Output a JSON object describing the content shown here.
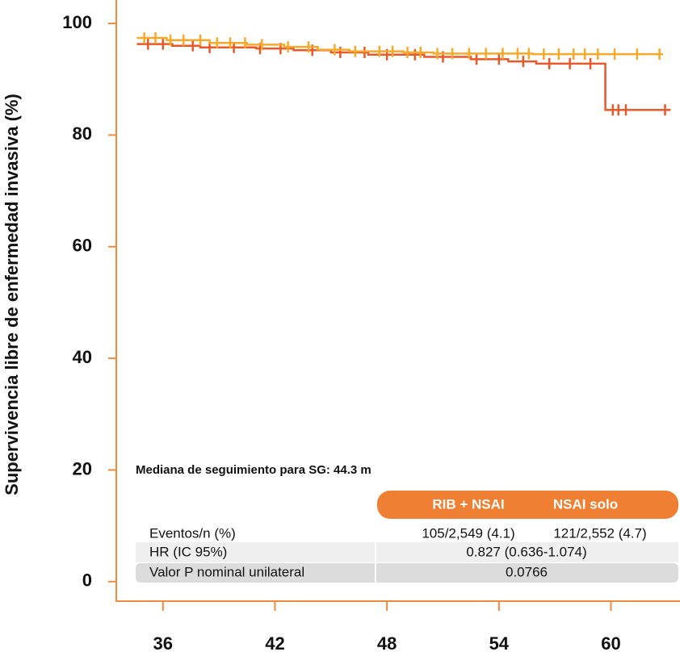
{
  "chart_data": {
    "type": "step",
    "y_label": "Supervivencia libre de enfermedad invasiva (%)",
    "annotation": "Mediana de seguimiento para SG: 44.3 m",
    "xlim": [
      33.5,
      63.7
    ],
    "ylim": [
      -3.5,
      104.2
    ],
    "xticks": [
      36,
      42,
      48,
      54,
      60
    ],
    "yticks": [
      0,
      20,
      40,
      60,
      80,
      100
    ],
    "series": [
      {
        "name": "NSAI solo",
        "color": "#e8582a",
        "x": [
          34.6,
          36.5,
          38.0,
          41.0,
          43.0,
          45.0,
          47.0,
          50.0,
          52.5,
          54.5,
          56.0,
          59.7,
          63.2
        ],
        "values": [
          96.3,
          96.0,
          95.7,
          95.5,
          95.2,
          94.8,
          94.4,
          94.0,
          93.6,
          93.2,
          92.8,
          84.5,
          84.5
        ],
        "censored": [
          35.2,
          36.0,
          37.6,
          38.5,
          39.8,
          41.2,
          42.3,
          44.0,
          45.5,
          46.8,
          48.0,
          49.5,
          51.0,
          52.8,
          54.0,
          55.3,
          56.7,
          57.8,
          58.9,
          60.1,
          60.4,
          60.8,
          62.9
        ]
      },
      {
        "name": "RIB + NSAI",
        "color": "#f6a92a",
        "x": [
          34.6,
          36.2,
          38.5,
          40.5,
          42.5,
          44.3,
          46.0,
          48.9,
          50.5,
          55.8,
          62.8
        ],
        "values": [
          97.4,
          97.0,
          96.5,
          96.2,
          95.8,
          95.3,
          95.0,
          94.8,
          94.6,
          94.5,
          94.5
        ],
        "censored": [
          35.0,
          35.6,
          36.4,
          37.1,
          38.0,
          38.9,
          39.6,
          40.4,
          41.3,
          42.7,
          43.8,
          45.2,
          46.3,
          47.6,
          48.3,
          49.1,
          49.8,
          50.7,
          51.5,
          52.4,
          53.3,
          54.2,
          55.0,
          55.6,
          56.4,
          57.2,
          58.0,
          58.6,
          59.3,
          60.2,
          61.4,
          62.6
        ]
      }
    ]
  },
  "table": {
    "columns": [
      "RIB + NSAI",
      "NSAI solo"
    ],
    "rows": [
      [
        "Eventos/n (%)",
        "105/2,549 (4.1)",
        "121/2,552 (4.7)"
      ],
      [
        "HR (IC 95%)",
        "0.827 (0.636-1.074)"
      ],
      [
        "Valor P nominal unilateral",
        "0.0766"
      ]
    ]
  }
}
